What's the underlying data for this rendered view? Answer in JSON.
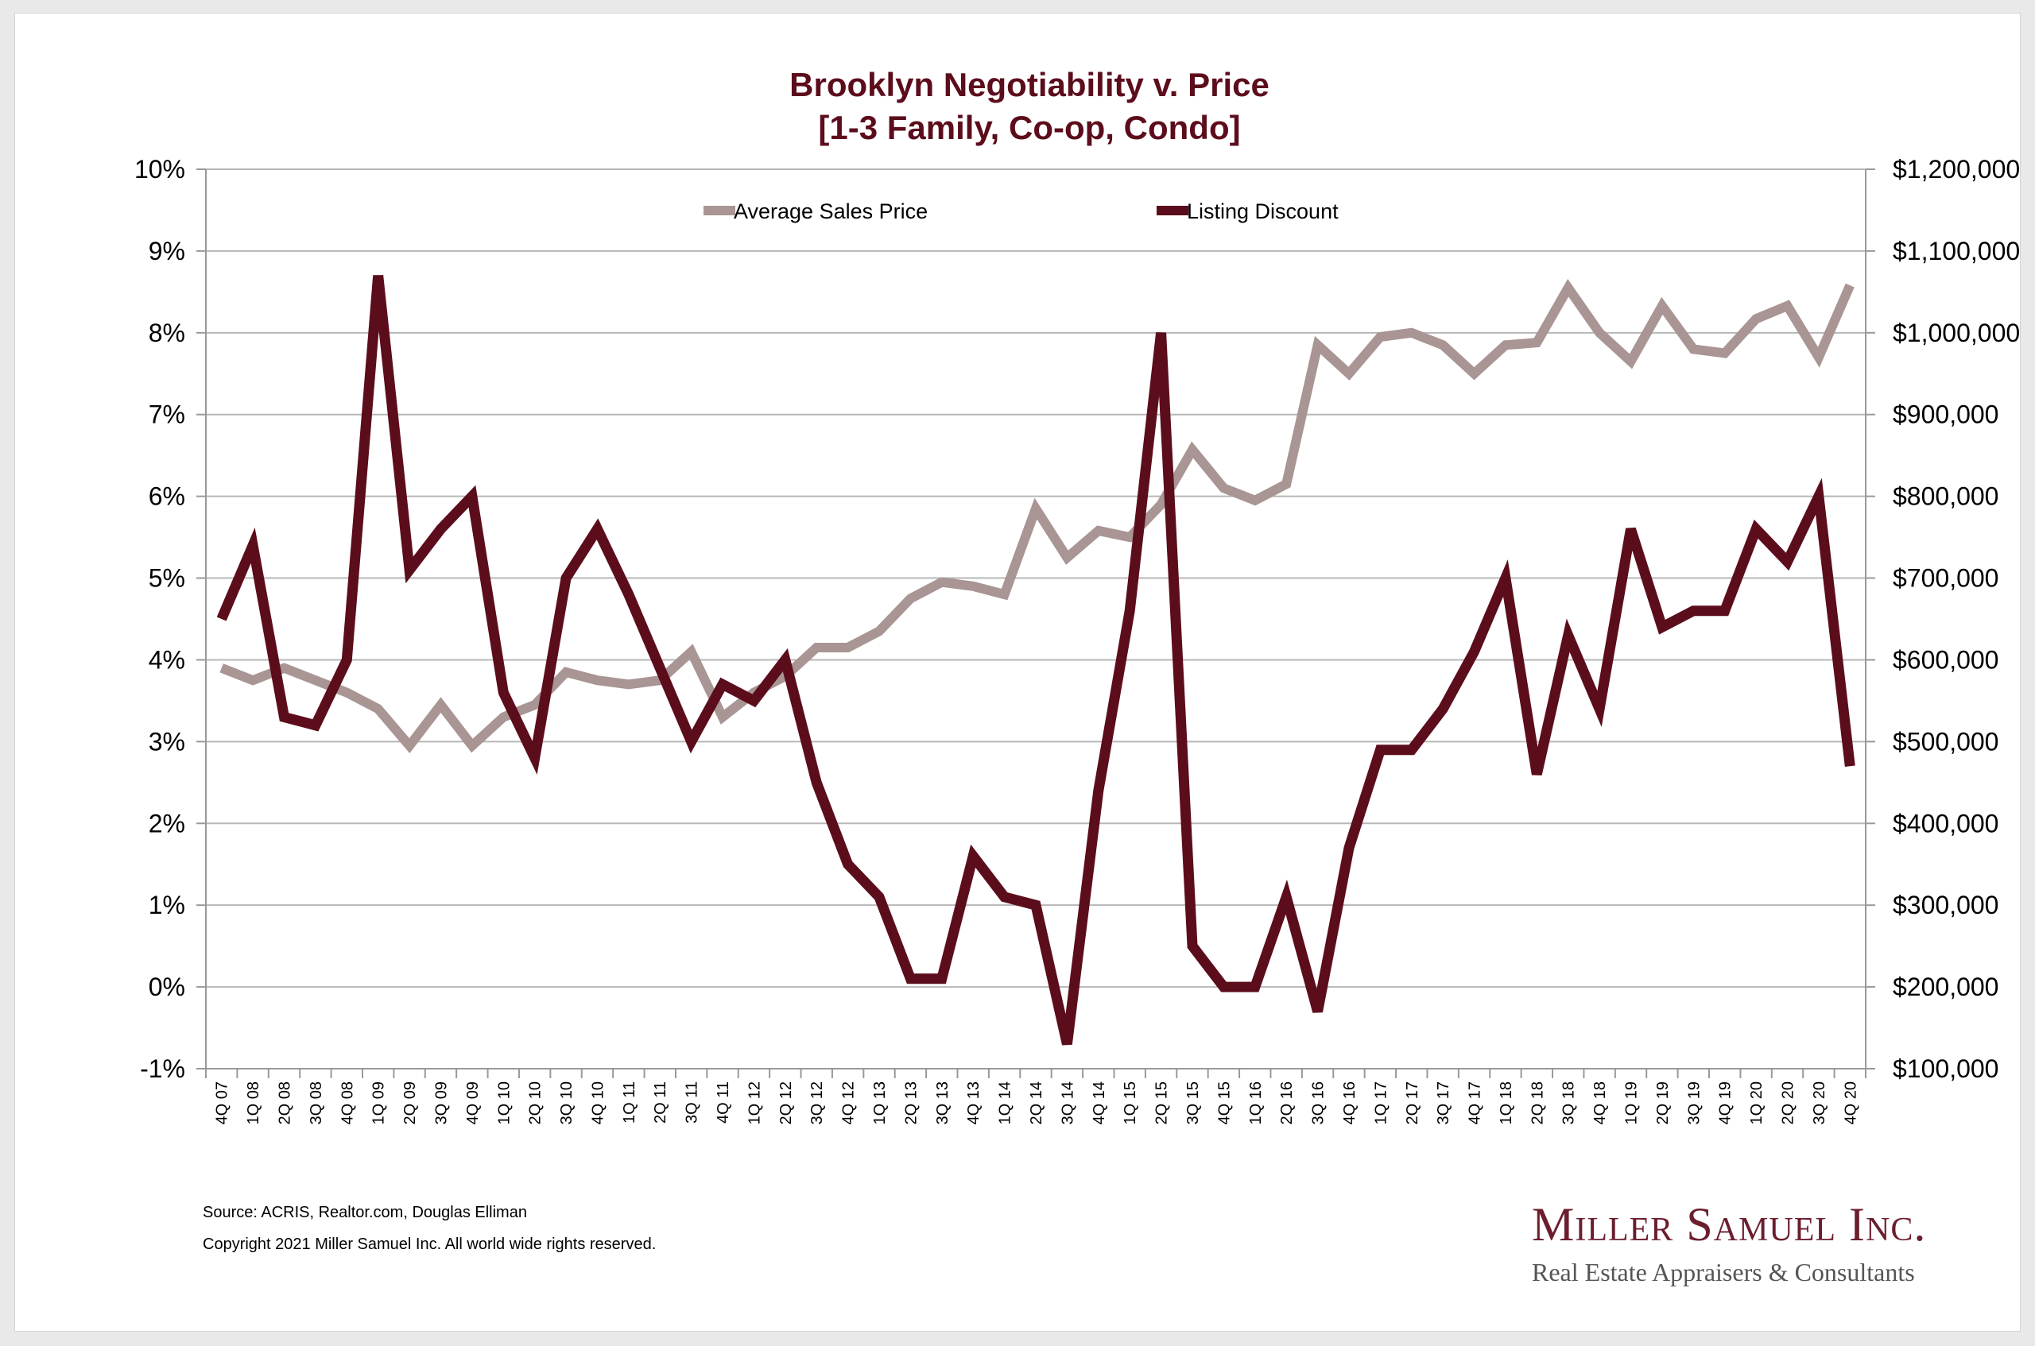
{
  "chart_data": {
    "type": "line",
    "title": "Brooklyn Negotiability v. Price",
    "subtitle": "[1-3 Family, Co-op, Condo]",
    "categories": [
      "4Q 07",
      "1Q 08",
      "2Q 08",
      "3Q 08",
      "4Q 08",
      "1Q 09",
      "2Q 09",
      "3Q 09",
      "4Q 09",
      "1Q 10",
      "2Q 10",
      "3Q 10",
      "4Q 10",
      "1Q 11",
      "2Q 11",
      "3Q 11",
      "4Q 11",
      "1Q 12",
      "2Q 12",
      "3Q 12",
      "4Q 12",
      "1Q 13",
      "2Q 13",
      "3Q 13",
      "4Q 13",
      "1Q 14",
      "2Q 14",
      "3Q 14",
      "4Q 14",
      "1Q 15",
      "2Q 15",
      "3Q 15",
      "4Q 15",
      "1Q 16",
      "2Q 16",
      "3Q 16",
      "4Q 16",
      "1Q 17",
      "2Q 17",
      "3Q 17",
      "4Q 17",
      "1Q 18",
      "2Q 18",
      "3Q 18",
      "4Q 18",
      "1Q 19",
      "2Q 19",
      "3Q 19",
      "4Q 19",
      "1Q 20",
      "2Q 20",
      "3Q 20",
      "4Q 20"
    ],
    "left_axis": {
      "min": -1,
      "max": 10,
      "step": 1,
      "unit": "%",
      "tick_labels": [
        "-1%",
        "0%",
        "1%",
        "2%",
        "3%",
        "4%",
        "5%",
        "6%",
        "7%",
        "8%",
        "9%",
        "10%"
      ]
    },
    "right_axis": {
      "min": 100000,
      "max": 1200000,
      "step": 100000,
      "tick_labels": [
        "$100,000",
        "$200,000",
        "$300,000",
        "$400,000",
        "$500,000",
        "$600,000",
        "$700,000",
        "$800,000",
        "$900,000",
        "$1,000,000",
        "$1,100,000",
        "$1,200,000"
      ]
    },
    "grid": true,
    "legend_position": "top-center",
    "series": [
      {
        "name": "Average Sales Price",
        "axis": "right",
        "color": "#a89594",
        "values": [
          590000,
          575000,
          590000,
          575000,
          560000,
          540000,
          495000,
          545000,
          495000,
          530000,
          545000,
          585000,
          575000,
          570000,
          575000,
          610000,
          530000,
          560000,
          580000,
          615000,
          615000,
          635000,
          675000,
          695000,
          690000,
          680000,
          785000,
          725000,
          758000,
          750000,
          790000,
          857000,
          810000,
          795000,
          815000,
          985000,
          950000,
          995000,
          1000000,
          985000,
          950000,
          985000,
          988000,
          1055000,
          1000000,
          965000,
          1033000,
          980000,
          975000,
          1017000,
          1033000,
          970000,
          1058000
        ]
      },
      {
        "name": "Listing Discount",
        "axis": "left",
        "color": "#5c0d1c",
        "values": [
          4.5,
          5.4,
          3.3,
          3.2,
          4.0,
          8.7,
          5.1,
          5.6,
          6.0,
          3.6,
          2.8,
          5.0,
          5.6,
          4.8,
          3.9,
          3.0,
          3.7,
          3.5,
          4.0,
          2.5,
          1.5,
          1.1,
          0.1,
          0.1,
          1.6,
          1.1,
          1.0,
          -0.7,
          2.4,
          4.6,
          8.0,
          0.5,
          0.0,
          0.0,
          1.1,
          -0.3,
          1.7,
          2.9,
          2.9,
          3.4,
          4.1,
          5.0,
          2.6,
          4.3,
          3.4,
          5.6,
          4.4,
          4.6,
          4.6,
          5.6,
          5.2,
          6.0,
          2.7
        ]
      }
    ]
  },
  "footer": {
    "source": "Source: ACRIS, Realtor.com, Douglas Elliman",
    "copyright": "Copyright 2021 Miller Samuel Inc.  All world wide rights reserved."
  },
  "logo": {
    "name": "Miller Samuel Inc.",
    "tagline": "Real Estate Appraisers & Consultants"
  }
}
